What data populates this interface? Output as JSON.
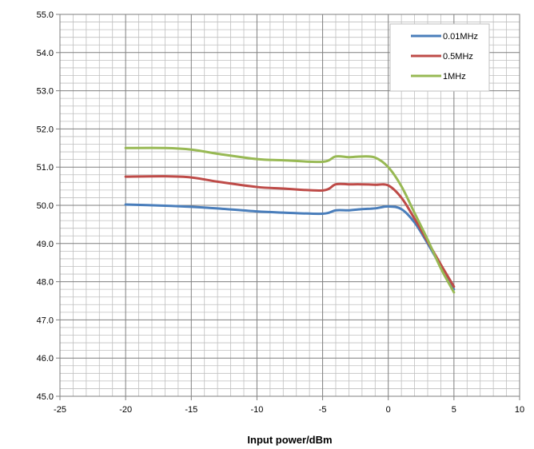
{
  "chart_data": {
    "type": "line",
    "title": "",
    "xlabel": "Input power/dBm",
    "ylabel": "",
    "xlim": [
      -25,
      10
    ],
    "ylim": [
      45.0,
      55.0
    ],
    "x_ticks": [
      -25,
      -20,
      -15,
      -10,
      -5,
      0,
      5,
      10
    ],
    "y_ticks": [
      45.0,
      46.0,
      47.0,
      48.0,
      49.0,
      50.0,
      51.0,
      52.0,
      53.0,
      54.0,
      55.0
    ],
    "x_tick_labels": [
      "-25",
      "-20",
      "-15",
      "-10",
      "-5",
      "0",
      "5",
      "10"
    ],
    "y_tick_labels": [
      "45.0",
      "46.0",
      "47.0",
      "48.0",
      "49.0",
      "50.0",
      "51.0",
      "52.0",
      "53.0",
      "54.0",
      "55.0"
    ],
    "grid": true,
    "minor_grid": true,
    "legend": "top-right",
    "series": [
      {
        "name": "0.01MHz",
        "color": "#4a7ebb",
        "points": [
          [
            -20,
            50.02
          ],
          [
            -17,
            49.99
          ],
          [
            -15,
            49.96
          ],
          [
            -13,
            49.92
          ],
          [
            -10,
            49.84
          ],
          [
            -8,
            49.81
          ],
          [
            -5,
            49.78
          ],
          [
            -4,
            49.87
          ],
          [
            -3,
            49.87
          ],
          [
            -2,
            49.9
          ],
          [
            -1,
            49.92
          ],
          [
            0,
            49.97
          ],
          [
            1,
            49.9
          ],
          [
            2,
            49.55
          ],
          [
            3,
            49.0
          ],
          [
            4,
            48.4
          ],
          [
            5,
            47.8
          ]
        ]
      },
      {
        "name": "0.5MHz",
        "color": "#be4b48",
        "points": [
          [
            -20,
            50.75
          ],
          [
            -17,
            50.76
          ],
          [
            -15,
            50.73
          ],
          [
            -13,
            50.62
          ],
          [
            -10,
            50.48
          ],
          [
            -8,
            50.44
          ],
          [
            -5,
            50.39
          ],
          [
            -4,
            50.55
          ],
          [
            -3,
            50.55
          ],
          [
            -2,
            50.55
          ],
          [
            -1,
            50.54
          ],
          [
            0,
            50.52
          ],
          [
            1,
            50.2
          ],
          [
            2,
            49.65
          ],
          [
            3,
            49.05
          ],
          [
            4,
            48.45
          ],
          [
            5,
            47.87
          ]
        ]
      },
      {
        "name": "1MHz",
        "color": "#98b954",
        "points": [
          [
            -20,
            51.5
          ],
          [
            -17,
            51.5
          ],
          [
            -15,
            51.46
          ],
          [
            -13,
            51.35
          ],
          [
            -10,
            51.21
          ],
          [
            -8,
            51.18
          ],
          [
            -5,
            51.14
          ],
          [
            -4,
            51.28
          ],
          [
            -3,
            51.26
          ],
          [
            -2,
            51.28
          ],
          [
            -1,
            51.25
          ],
          [
            0,
            51.0
          ],
          [
            1,
            50.5
          ],
          [
            2,
            49.8
          ],
          [
            3,
            49.1
          ],
          [
            4,
            48.35
          ],
          [
            5,
            47.72
          ]
        ]
      }
    ]
  }
}
